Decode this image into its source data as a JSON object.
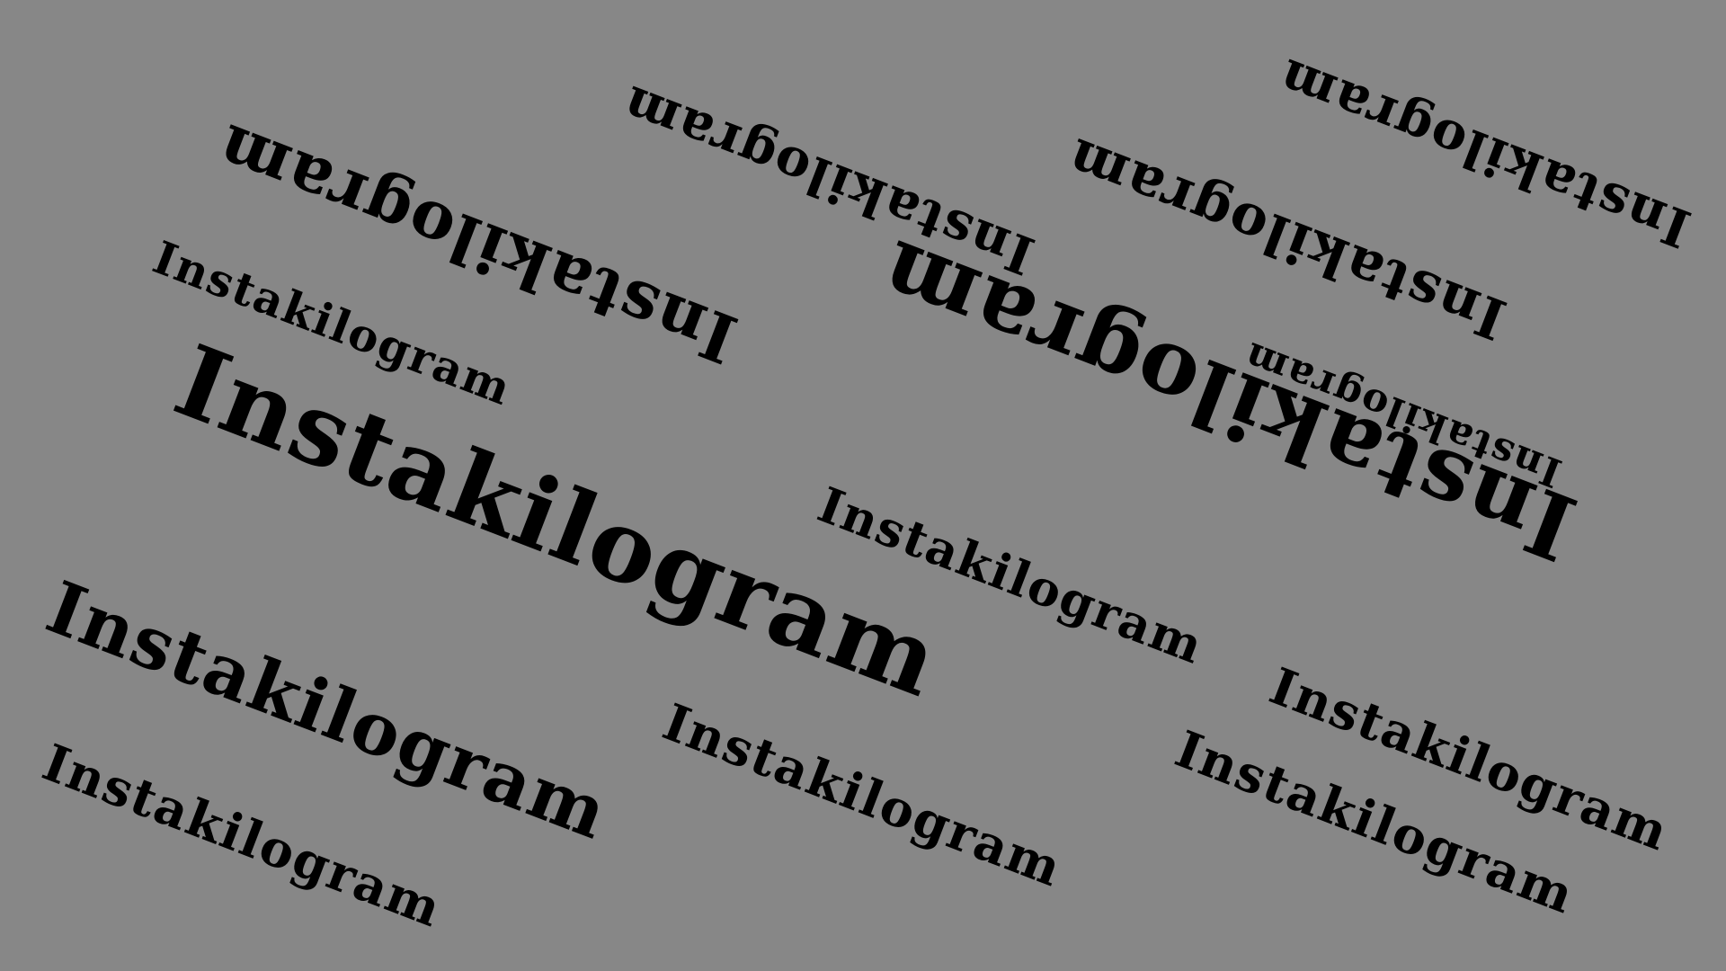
{
  "background_color": "#878787",
  "text_color": "#000000",
  "words": [
    {
      "text": "Instakilogram"
    },
    {
      "text": "Instakilogram"
    },
    {
      "text": "Instakilogram"
    },
    {
      "text": "Instakilogram"
    },
    {
      "text": "Instakilogram"
    },
    {
      "text": "Instakilogram"
    },
    {
      "text": "Instakilogram"
    },
    {
      "text": "Instakilogram"
    },
    {
      "text": "Instakilogram"
    },
    {
      "text": "Instakilogram"
    },
    {
      "text": "Instakilogram"
    },
    {
      "text": "Instakilogram"
    },
    {
      "text": "Instakilogram"
    },
    {
      "text": "Instakilogram"
    }
  ]
}
